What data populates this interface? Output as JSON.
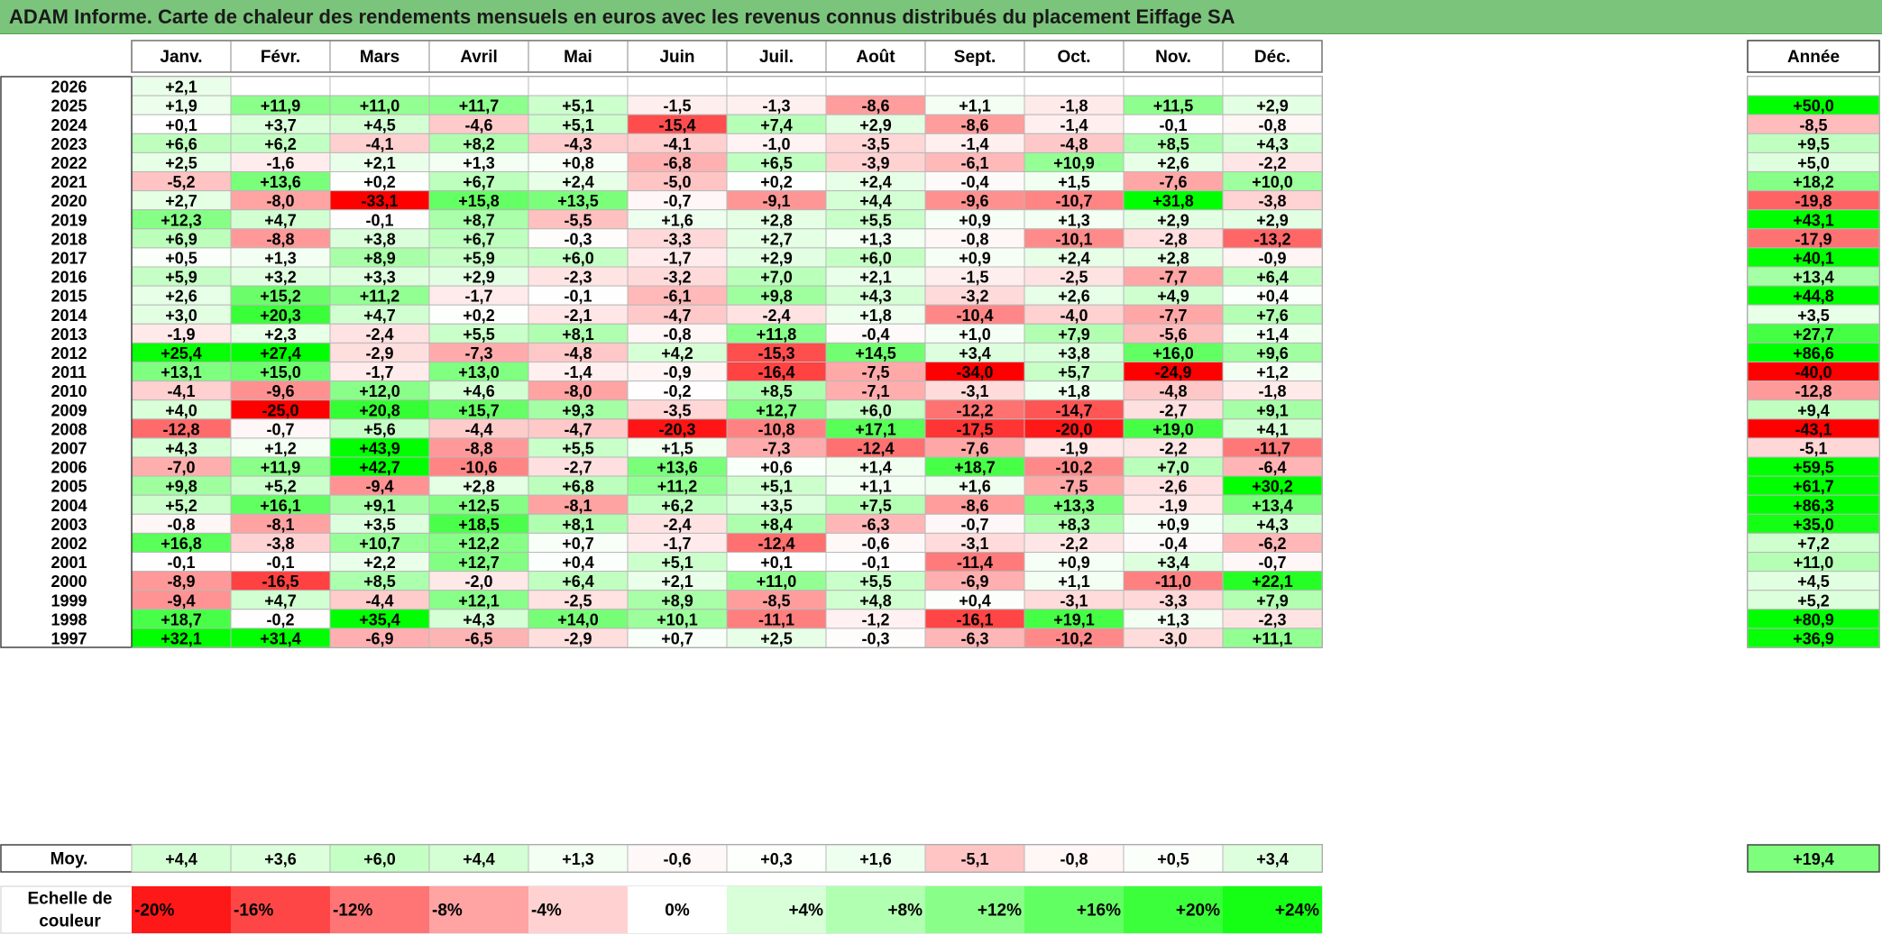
{
  "title": "ADAM Informe. Carte de chaleur des rendements mensuels en euros avec les revenus connus distribués du placement Eiffage SA",
  "chart_data": {
    "type": "heatmap",
    "title": "ADAM Informe. Carte de chaleur des rendements mensuels en euros avec les revenus connus distribués du placement Eiffage SA",
    "months": [
      "Janv.",
      "Févr.",
      "Mars",
      "Avril",
      "Mai",
      "Juin",
      "Juil.",
      "Août",
      "Sept.",
      "Oct.",
      "Nov.",
      "Déc."
    ],
    "year_header": "Année",
    "rows": [
      {
        "year": "2026",
        "values": [
          "+2,1",
          "",
          "",
          "",
          "",
          "",
          "",
          "",
          "",
          "",
          "",
          ""
        ],
        "annual": ""
      },
      {
        "year": "2025",
        "values": [
          "+1,9",
          "+11,9",
          "+11,0",
          "+11,7",
          "+5,1",
          "-1,5",
          "-1,3",
          "-8,6",
          "+1,1",
          "-1,8",
          "+11,5",
          "+2,9"
        ],
        "annual": "+50,0"
      },
      {
        "year": "2024",
        "values": [
          "+0,1",
          "+3,7",
          "+4,5",
          "-4,6",
          "+5,1",
          "-15,4",
          "+7,4",
          "+2,9",
          "-8,6",
          "-1,4",
          "-0,1",
          "-0,8"
        ],
        "annual": "-8,5"
      },
      {
        "year": "2023",
        "values": [
          "+6,6",
          "+6,2",
          "-4,1",
          "+8,2",
          "-4,3",
          "-4,1",
          "-1,0",
          "-3,5",
          "-1,4",
          "-4,8",
          "+8,5",
          "+4,3"
        ],
        "annual": "+9,5"
      },
      {
        "year": "2022",
        "values": [
          "+2,5",
          "-1,6",
          "+2,1",
          "+1,3",
          "+0,8",
          "-6,8",
          "+6,5",
          "-3,9",
          "-6,1",
          "+10,9",
          "+2,6",
          "-2,2"
        ],
        "annual": "+5,0"
      },
      {
        "year": "2021",
        "values": [
          "-5,2",
          "+13,6",
          "+0,2",
          "+6,7",
          "+2,4",
          "-5,0",
          "+0,2",
          "+2,4",
          "-0,4",
          "+1,5",
          "-7,6",
          "+10,0"
        ],
        "annual": "+18,2"
      },
      {
        "year": "2020",
        "values": [
          "+2,7",
          "-8,0",
          "-33,1",
          "+15,8",
          "+13,5",
          "-0,7",
          "-9,1",
          "+4,4",
          "-9,6",
          "-10,7",
          "+31,8",
          "-3,8"
        ],
        "annual": "-19,8"
      },
      {
        "year": "2019",
        "values": [
          "+12,3",
          "+4,7",
          "-0,1",
          "+8,7",
          "-5,5",
          "+1,6",
          "+2,8",
          "+5,5",
          "+0,9",
          "+1,3",
          "+2,9",
          "+2,9"
        ],
        "annual": "+43,1"
      },
      {
        "year": "2018",
        "values": [
          "+6,9",
          "-8,8",
          "+3,8",
          "+6,7",
          "-0,3",
          "-3,3",
          "+2,7",
          "+1,3",
          "-0,8",
          "-10,1",
          "-2,8",
          "-13,2"
        ],
        "annual": "-17,9"
      },
      {
        "year": "2017",
        "values": [
          "+0,5",
          "+1,3",
          "+8,9",
          "+5,9",
          "+6,0",
          "-1,7",
          "+2,9",
          "+6,0",
          "+0,9",
          "+2,4",
          "+2,8",
          "-0,9"
        ],
        "annual": "+40,1"
      },
      {
        "year": "2016",
        "values": [
          "+5,9",
          "+3,2",
          "+3,3",
          "+2,9",
          "-2,3",
          "-3,2",
          "+7,0",
          "+2,1",
          "-1,5",
          "-2,5",
          "-7,7",
          "+6,4"
        ],
        "annual": "+13,4"
      },
      {
        "year": "2015",
        "values": [
          "+2,6",
          "+15,2",
          "+11,2",
          "-1,7",
          "-0,1",
          "-6,1",
          "+9,8",
          "+4,3",
          "-3,2",
          "+2,6",
          "+4,9",
          "+0,4"
        ],
        "annual": "+44,8"
      },
      {
        "year": "2014",
        "values": [
          "+3,0",
          "+20,3",
          "+4,7",
          "+0,2",
          "-2,1",
          "-4,7",
          "-2,4",
          "+1,8",
          "-10,4",
          "-4,0",
          "-7,7",
          "+7,6"
        ],
        "annual": "+3,5"
      },
      {
        "year": "2013",
        "values": [
          "-1,9",
          "+2,3",
          "-2,4",
          "+5,5",
          "+8,1",
          "-0,8",
          "+11,8",
          "-0,4",
          "+1,0",
          "+7,9",
          "-5,6",
          "+1,4"
        ],
        "annual": "+27,7"
      },
      {
        "year": "2012",
        "values": [
          "+25,4",
          "+27,4",
          "-2,9",
          "-7,3",
          "-4,8",
          "+4,2",
          "-15,3",
          "+14,5",
          "+3,4",
          "+3,8",
          "+16,0",
          "+9,6"
        ],
        "annual": "+86,6"
      },
      {
        "year": "2011",
        "values": [
          "+13,1",
          "+15,0",
          "-1,7",
          "+13,0",
          "-1,4",
          "-0,9",
          "-16,4",
          "-7,5",
          "-34,0",
          "+5,7",
          "-24,9",
          "+1,2"
        ],
        "annual": "-40,0"
      },
      {
        "year": "2010",
        "values": [
          "-4,1",
          "-9,6",
          "+12,0",
          "+4,6",
          "-8,0",
          "-0,2",
          "+8,5",
          "-7,1",
          "-3,1",
          "+1,8",
          "-4,8",
          "-1,8"
        ],
        "annual": "-12,8"
      },
      {
        "year": "2009",
        "values": [
          "+4,0",
          "-25,0",
          "+20,8",
          "+15,7",
          "+9,3",
          "-3,5",
          "+12,7",
          "+6,0",
          "-12,2",
          "-14,7",
          "-2,7",
          "+9,1"
        ],
        "annual": "+9,4"
      },
      {
        "year": "2008",
        "values": [
          "-12,8",
          "-0,7",
          "+5,6",
          "-4,4",
          "-4,7",
          "-20,3",
          "-10,8",
          "+17,1",
          "-17,5",
          "-20,0",
          "+19,0",
          "+4,1"
        ],
        "annual": "-43,1"
      },
      {
        "year": "2007",
        "values": [
          "+4,3",
          "+1,2",
          "+43,9",
          "-8,8",
          "+5,5",
          "+1,5",
          "-7,3",
          "-12,4",
          "-7,6",
          "-1,9",
          "-2,2",
          "-11,7"
        ],
        "annual": "-5,1"
      },
      {
        "year": "2006",
        "values": [
          "-7,0",
          "+11,9",
          "+42,7",
          "-10,6",
          "-2,7",
          "+13,6",
          "+0,6",
          "+1,4",
          "+18,7",
          "-10,2",
          "+7,0",
          "-6,4"
        ],
        "annual": "+59,5"
      },
      {
        "year": "2005",
        "values": [
          "+9,8",
          "+5,2",
          "-9,4",
          "+2,8",
          "+6,8",
          "+11,2",
          "+5,1",
          "+1,1",
          "+1,6",
          "-7,5",
          "-2,6",
          "+30,2"
        ],
        "annual": "+61,7"
      },
      {
        "year": "2004",
        "values": [
          "+5,2",
          "+16,1",
          "+9,1",
          "+12,5",
          "-8,1",
          "+6,2",
          "+3,5",
          "+7,5",
          "-8,6",
          "+13,3",
          "-1,9",
          "+13,4"
        ],
        "annual": "+86,3"
      },
      {
        "year": "2003",
        "values": [
          "-0,8",
          "-8,1",
          "+3,5",
          "+18,5",
          "+8,1",
          "-2,4",
          "+8,4",
          "-6,3",
          "-0,7",
          "+8,3",
          "+0,9",
          "+4,3"
        ],
        "annual": "+35,0"
      },
      {
        "year": "2002",
        "values": [
          "+16,8",
          "-3,8",
          "+10,7",
          "+12,2",
          "+0,7",
          "-1,7",
          "-12,4",
          "-0,6",
          "-3,1",
          "-2,2",
          "-0,4",
          "-6,2"
        ],
        "annual": "+7,2"
      },
      {
        "year": "2001",
        "values": [
          "-0,1",
          "-0,1",
          "+2,2",
          "+12,7",
          "+0,4",
          "+5,1",
          "+0,1",
          "-0,1",
          "-11,4",
          "+0,9",
          "+3,4",
          "-0,7"
        ],
        "annual": "+11,0"
      },
      {
        "year": "2000",
        "values": [
          "-8,9",
          "-16,5",
          "+8,5",
          "-2,0",
          "+6,4",
          "+2,1",
          "+11,0",
          "+5,5",
          "-6,9",
          "+1,1",
          "-11,0",
          "+22,1"
        ],
        "annual": "+4,5"
      },
      {
        "year": "1999",
        "values": [
          "-9,4",
          "+4,7",
          "-4,4",
          "+12,1",
          "-2,5",
          "+8,9",
          "-8,5",
          "+4,8",
          "+0,4",
          "-3,1",
          "-3,3",
          "+7,9"
        ],
        "annual": "+5,2"
      },
      {
        "year": "1998",
        "values": [
          "+18,7",
          "-0,2",
          "+35,4",
          "+4,3",
          "+14,0",
          "+10,1",
          "-11,1",
          "-1,2",
          "-16,1",
          "+19,1",
          "+1,3",
          "-2,3"
        ],
        "annual": "+80,9"
      },
      {
        "year": "1997",
        "values": [
          "+32,1",
          "+31,4",
          "-6,9",
          "-6,5",
          "-2,9",
          "+0,7",
          "+2,5",
          "-0,3",
          "-6,3",
          "-10,2",
          "-3,0",
          "+11,1"
        ],
        "annual": "+36,9"
      }
    ],
    "average": {
      "label": "Moy.",
      "values": [
        "+4,4",
        "+3,6",
        "+6,0",
        "+4,4",
        "+1,3",
        "-0,6",
        "+0,3",
        "+1,6",
        "-5,1",
        "-0,8",
        "+0,5",
        "+3,4"
      ],
      "annual": "+19,4"
    },
    "scale": {
      "label_line1": "Echelle de",
      "label_line2": "couleur",
      "stops": [
        "-20%",
        "-16%",
        "-12%",
        "-8%",
        "-4%",
        "0%",
        "+4%",
        "+8%",
        "+12%",
        "+16%",
        "+20%",
        "+24%"
      ]
    },
    "colors": {
      "negative": "#ff0000",
      "neutral": "#ffffff",
      "positive": "#00ff00"
    }
  }
}
